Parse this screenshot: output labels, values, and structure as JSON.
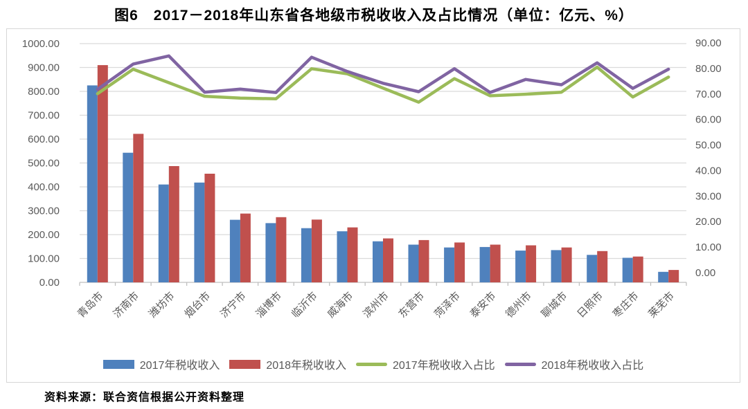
{
  "title": "图6　2017－2018年山东省各地级市税收收入及占比情况（单位：亿元、%）",
  "source_note": "资料来源：联合资信根据公开资料整理",
  "colors": {
    "bar2017": "#4F81BD",
    "bar2018": "#C0504D",
    "line2017": "#9BBB59",
    "line2018": "#8064A2",
    "gridline": "#DBDBDB",
    "axis_line": "#BFBFBF",
    "axis_text": "#595959"
  },
  "chart_data": {
    "type": "bar",
    "subtype": "bar-line-combo",
    "title": "图6　2017－2018年山东省各地级市税收收入及占比情况（单位：亿元、%）",
    "categories": [
      "青岛市",
      "济南市",
      "潍坊市",
      "烟台市",
      "济宁市",
      "淄博市",
      "临沂市",
      "威海市",
      "滨州市",
      "东营市",
      "菏泽市",
      "泰安市",
      "德州市",
      "聊城市",
      "日照市",
      "枣庄市",
      "莱芜市"
    ],
    "series": [
      {
        "name": "2017年税收收入",
        "type": "bar",
        "axis": "left",
        "color_key": "bar2017",
        "values": [
          825,
          543,
          410,
          418,
          262,
          248,
          227,
          214,
          172,
          158,
          146,
          148,
          133,
          135,
          115,
          103,
          44
        ]
      },
      {
        "name": "2018年税收收入",
        "type": "bar",
        "axis": "left",
        "color_key": "bar2018",
        "values": [
          910,
          622,
          487,
          455,
          288,
          273,
          263,
          230,
          184,
          177,
          167,
          158,
          155,
          146,
          131,
          108,
          52
        ]
      },
      {
        "name": "2017年税收收入占比",
        "type": "line",
        "axis": "right",
        "color_key": "line2017",
        "values": [
          70.1,
          79.7,
          74.4,
          69.1,
          68.4,
          68.1,
          79.9,
          77.9,
          72.3,
          66.8,
          76.0,
          69.3,
          69.9,
          70.7,
          80.5,
          68.8,
          76.6
        ]
      },
      {
        "name": "2018年税收收入占比",
        "type": "line",
        "axis": "right",
        "color_key": "line2018",
        "values": [
          71.8,
          81.7,
          84.9,
          70.7,
          71.9,
          70.6,
          84.4,
          78.8,
          74.2,
          70.9,
          79.9,
          70.6,
          75.7,
          73.6,
          82.2,
          72.2,
          79.7
        ]
      }
    ],
    "left_axis": {
      "min": 0,
      "max": 1000,
      "step": 100,
      "unit": "亿元",
      "tick_labels": [
        "0.00",
        "100.00",
        "200.00",
        "300.00",
        "400.00",
        "500.00",
        "600.00",
        "700.00",
        "800.00",
        "900.00",
        "1000.00"
      ]
    },
    "right_axis": {
      "min": 0,
      "max": 90,
      "step": 10,
      "unit": "%",
      "tick_labels": [
        "0.00",
        "10.00",
        "20.00",
        "30.00",
        "40.00",
        "50.00",
        "60.00",
        "70.00",
        "80.00",
        "90.00"
      ]
    },
    "grid": true,
    "legend_position": "bottom"
  }
}
